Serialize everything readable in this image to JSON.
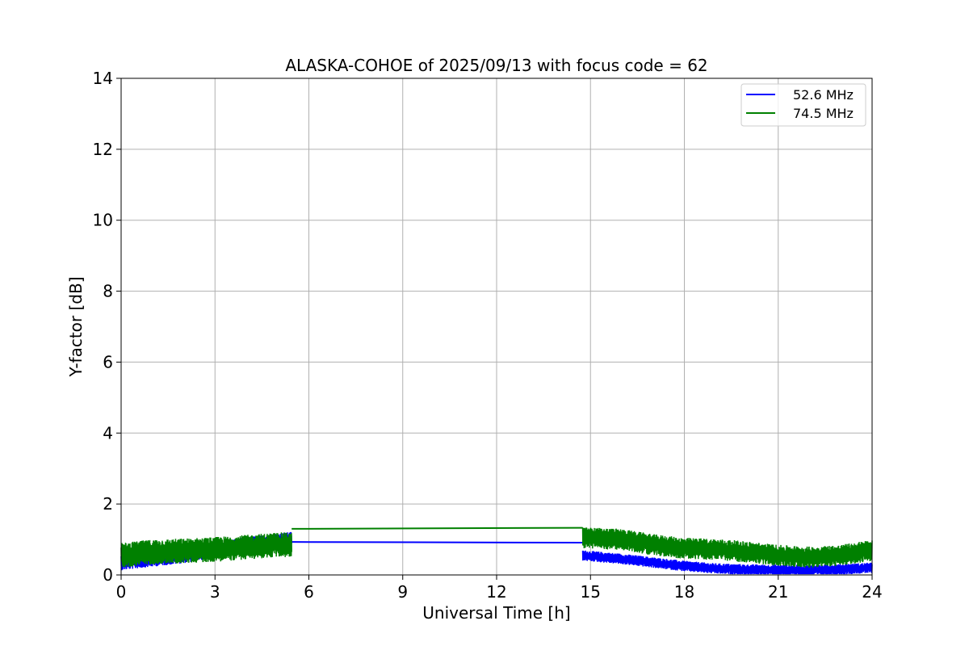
{
  "chart_data": {
    "type": "line",
    "title": "ALASKA-COHOE of 2025/09/13 with focus code = 62",
    "xlabel": "Universal Time [h]",
    "ylabel": "Y-factor [dB]",
    "xlim": [
      0,
      24
    ],
    "ylim": [
      0,
      14
    ],
    "xticks": [
      0,
      3,
      6,
      9,
      12,
      15,
      18,
      21,
      24
    ],
    "yticks": [
      0,
      2,
      4,
      6,
      8,
      10,
      12,
      14
    ],
    "grid": true,
    "legend_position": "upper right",
    "series": [
      {
        "name": "52.6 MHz",
        "color": "#0000ff",
        "noisy_segments": [
          {
            "x": [
              0,
              1,
              2,
              3,
              4,
              5,
              5.45
            ],
            "center": [
              0.35,
              0.45,
              0.55,
              0.7,
              0.85,
              0.95,
              1.0
            ],
            "amplitude": 0.22
          },
          {
            "x": [
              14.75,
              16,
              17,
              18,
              19,
              20,
              21,
              22,
              23,
              24
            ],
            "center": [
              0.55,
              0.45,
              0.35,
              0.25,
              0.18,
              0.15,
              0.14,
              0.13,
              0.16,
              0.2
            ],
            "amplitude": 0.15
          }
        ],
        "gap_line": {
          "x": [
            5.45,
            14.75
          ],
          "y": [
            0.93,
            0.91
          ]
        }
      },
      {
        "name": "74.5 MHz",
        "color": "#008000",
        "noisy_segments": [
          {
            "x": [
              0,
              1,
              2,
              3,
              4,
              5,
              5.45
            ],
            "center": [
              0.55,
              0.65,
              0.68,
              0.72,
              0.78,
              0.85,
              0.85
            ],
            "amplitude": 0.35
          },
          {
            "x": [
              14.75,
              16,
              17,
              18,
              19,
              20,
              21,
              22,
              23,
              24
            ],
            "center": [
              1.05,
              1.0,
              0.85,
              0.75,
              0.72,
              0.65,
              0.55,
              0.5,
              0.55,
              0.7
            ],
            "amplitude": 0.3
          }
        ],
        "gap_line": {
          "x": [
            5.45,
            14.75
          ],
          "y": [
            1.3,
            1.33
          ]
        }
      }
    ]
  }
}
